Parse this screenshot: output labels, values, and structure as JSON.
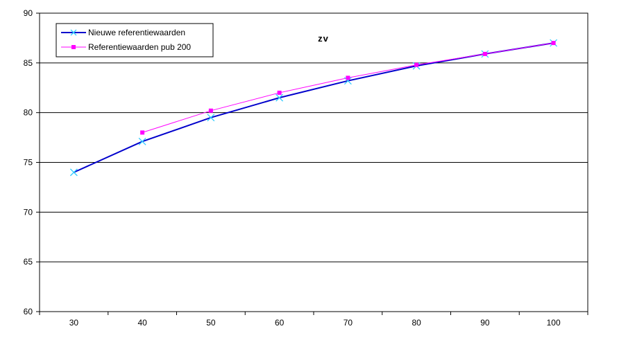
{
  "chart_data": {
    "type": "line",
    "title": "zv",
    "xlabel": "",
    "ylabel": "",
    "x": [
      30,
      40,
      50,
      60,
      70,
      80,
      90,
      100
    ],
    "categories": [
      "30",
      "40",
      "50",
      "60",
      "70",
      "80",
      "90",
      "100"
    ],
    "ylim": [
      60,
      90
    ],
    "yticks": [
      60,
      65,
      70,
      75,
      80,
      85,
      90
    ],
    "grid": "horizontal",
    "legend_position": "top-left",
    "series": [
      {
        "name": "Nieuwe referentiewaarden",
        "color": "#0000cc",
        "marker_color": "#33ccff",
        "marker": "x",
        "values": [
          74.0,
          77.1,
          79.5,
          81.5,
          83.2,
          84.7,
          85.9,
          87.0
        ]
      },
      {
        "name": "Referentiewaarden pub 200",
        "color": "#ff00ff",
        "marker_color": "#ff00ff",
        "marker": "square",
        "values": [
          null,
          78.0,
          80.2,
          82.0,
          83.5,
          84.8,
          85.9,
          87.0
        ]
      }
    ]
  }
}
